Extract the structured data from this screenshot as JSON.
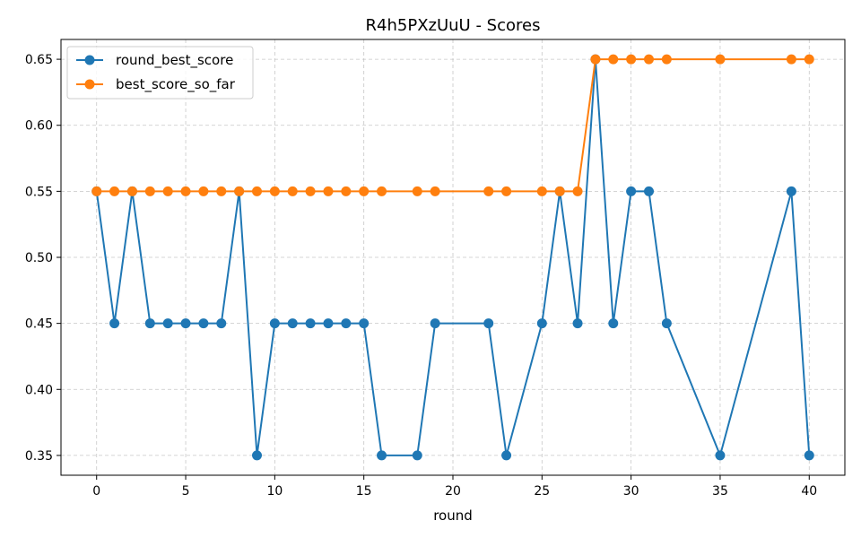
{
  "chart_data": {
    "type": "line",
    "title": "R4h5PXzUuU - Scores",
    "xlabel": "round",
    "ylabel": "",
    "xlim": [
      -2,
      42
    ],
    "ylim": [
      0.335,
      0.665
    ],
    "xticks": [
      0,
      5,
      10,
      15,
      20,
      25,
      30,
      35,
      40
    ],
    "xtick_labels": [
      "0",
      "5",
      "10",
      "15",
      "20",
      "25",
      "30",
      "35",
      "40"
    ],
    "yticks": [
      0.35,
      0.4,
      0.45,
      0.5,
      0.55,
      0.6,
      0.65
    ],
    "ytick_labels": [
      "0.35",
      "0.40",
      "0.45",
      "0.50",
      "0.55",
      "0.60",
      "0.65"
    ],
    "grid": true,
    "legend_position": "top-left",
    "series": [
      {
        "name": "round_best_score",
        "color": "#1f77b4",
        "x": [
          0,
          1,
          2,
          3,
          4,
          5,
          6,
          7,
          8,
          9,
          10,
          11,
          12,
          13,
          14,
          15,
          16,
          18,
          19,
          22,
          23,
          25,
          26,
          27,
          28,
          29,
          30,
          31,
          32,
          35,
          39,
          40
        ],
        "y": [
          0.55,
          0.45,
          0.55,
          0.45,
          0.45,
          0.45,
          0.45,
          0.45,
          0.55,
          0.35,
          0.45,
          0.45,
          0.45,
          0.45,
          0.45,
          0.45,
          0.35,
          0.35,
          0.45,
          0.45,
          0.35,
          0.45,
          0.55,
          0.45,
          0.65,
          0.45,
          0.55,
          0.55,
          0.45,
          0.35,
          0.55,
          0.35
        ]
      },
      {
        "name": "best_score_so_far",
        "color": "#ff7f0e",
        "x": [
          0,
          1,
          2,
          3,
          4,
          5,
          6,
          7,
          8,
          9,
          10,
          11,
          12,
          13,
          14,
          15,
          16,
          18,
          19,
          22,
          23,
          25,
          26,
          27,
          28,
          29,
          30,
          31,
          32,
          35,
          39,
          40
        ],
        "y": [
          0.55,
          0.55,
          0.55,
          0.55,
          0.55,
          0.55,
          0.55,
          0.55,
          0.55,
          0.55,
          0.55,
          0.55,
          0.55,
          0.55,
          0.55,
          0.55,
          0.55,
          0.55,
          0.55,
          0.55,
          0.55,
          0.55,
          0.55,
          0.55,
          0.65,
          0.65,
          0.65,
          0.65,
          0.65,
          0.65,
          0.65,
          0.65
        ]
      }
    ]
  }
}
